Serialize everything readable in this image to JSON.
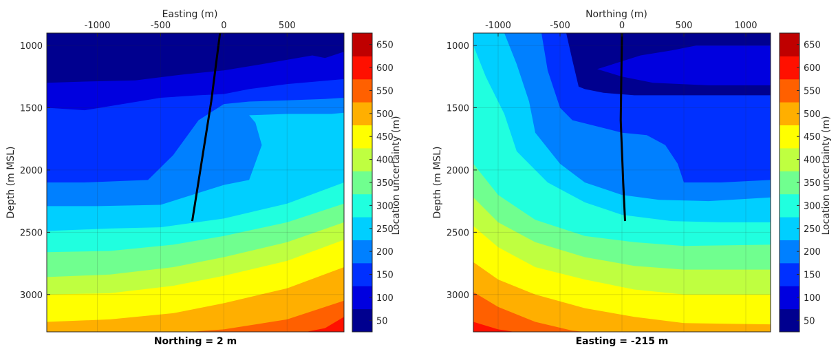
{
  "chart_data": [
    {
      "type": "filled-contour",
      "title": "Northing = 2 m",
      "xlabel": "Easting (m)",
      "ylabel": "Depth (m MSL)",
      "colorbar_label": "Location uncertainty (m)",
      "xlim": [
        -1400,
        950
      ],
      "ylim": [
        900,
        3300
      ],
      "y_reversed": true,
      "x_axis_position": "top",
      "grid": true,
      "xticks": [
        -1000,
        -500,
        0,
        500
      ],
      "xtick_labels": [
        "-1000",
        "-500",
        "0",
        "500"
      ],
      "yticks": [
        1000,
        1500,
        2000,
        2500,
        3000
      ],
      "ytick_labels": [
        "1000",
        "1500",
        "2000",
        "2500",
        "3000"
      ],
      "well_trace": {
        "x": [
          -30,
          -100,
          -250
        ],
        "y": [
          900,
          1450,
          2410
        ]
      },
      "contour_boundaries": [
        {
          "name": "100",
          "x": [
            -1400,
            -1100,
            -700,
            -300,
            0,
            300,
            700,
            800,
            950
          ],
          "y": [
            1300,
            1290,
            1280,
            1230,
            1200,
            1150,
            1080,
            1100,
            1050
          ]
        },
        {
          "name": "150",
          "x": [
            -1400,
            -1100,
            -800,
            -500,
            -200,
            0,
            200,
            500,
            950
          ],
          "y": [
            1500,
            1520,
            1470,
            1420,
            1400,
            1390,
            1350,
            1310,
            1270
          ]
        },
        {
          "name": "200",
          "x": [
            -1400,
            -1100,
            -600,
            -400,
            -200,
            0,
            200,
            500,
            800,
            950
          ],
          "y": [
            2100,
            2100,
            2080,
            1880,
            1600,
            1470,
            1450,
            1440,
            1430,
            1420
          ]
        },
        {
          "name": "250",
          "x": [
            -1400,
            -1000,
            -500,
            0,
            200,
            300,
            250,
            200,
            500,
            850,
            950
          ],
          "y": [
            2290,
            2290,
            2280,
            2120,
            2080,
            1800,
            1620,
            1560,
            1550,
            1550,
            1540
          ]
        },
        {
          "name": "300",
          "x": [
            -1400,
            -900,
            -500,
            0,
            500,
            950
          ],
          "y": [
            2490,
            2470,
            2460,
            2390,
            2270,
            2100
          ]
        },
        {
          "name": "350",
          "x": [
            -1400,
            -900,
            -400,
            0,
            500,
            950
          ],
          "y": [
            2660,
            2650,
            2600,
            2530,
            2420,
            2270
          ]
        },
        {
          "name": "400",
          "x": [
            -1400,
            -900,
            -400,
            0,
            500,
            950
          ],
          "y": [
            2860,
            2840,
            2780,
            2700,
            2580,
            2420
          ]
        },
        {
          "name": "450",
          "x": [
            -1400,
            -900,
            -400,
            0,
            500,
            950
          ],
          "y": [
            3000,
            2990,
            2930,
            2850,
            2730,
            2560
          ]
        },
        {
          "name": "500",
          "x": [
            -1400,
            -900,
            -400,
            0,
            500,
            950
          ],
          "y": [
            3220,
            3200,
            3150,
            3070,
            2950,
            2780
          ]
        },
        {
          "name": "550",
          "x": [
            -400,
            0,
            500,
            950
          ],
          "y": [
            3310,
            3280,
            3200,
            3050
          ]
        },
        {
          "name": "600",
          "x": [
            600,
            800,
            950
          ],
          "y": [
            3310,
            3270,
            3180
          ]
        }
      ]
    },
    {
      "type": "filled-contour",
      "title": "Easting = -215 m",
      "xlabel": "Northing (m)",
      "ylabel": "Depth (m MSL)",
      "colorbar_label": "Location uncertainty (m)",
      "xlim": [
        -1200,
        1200
      ],
      "ylim": [
        900,
        3300
      ],
      "y_reversed": true,
      "x_axis_position": "top",
      "grid": true,
      "xticks": [
        -1000,
        -500,
        0,
        500,
        1000
      ],
      "xtick_labels": [
        "-1000",
        "-500",
        "0",
        "500",
        "1000"
      ],
      "yticks": [
        1000,
        1500,
        2000,
        2500,
        3000
      ],
      "ytick_labels": [
        "1000",
        "1500",
        "2000",
        "2500",
        "3000"
      ],
      "well_trace": {
        "x": [
          0,
          -10,
          10,
          25
        ],
        "y": [
          900,
          1600,
          2100,
          2410
        ]
      },
      "contour_boundaries": [
        {
          "name": "100",
          "x": [
            1200,
            600,
            400,
            150,
            -200,
            0,
            250,
            700,
            1200
          ],
          "y": [
            1000,
            1000,
            1040,
            1080,
            1190,
            1250,
            1300,
            1320,
            1320
          ]
        },
        {
          "name": "150",
          "x": [
            -450,
            -400,
            -350,
            -300,
            -150,
            100,
            1200
          ],
          "y": [
            900,
            1120,
            1330,
            1350,
            1380,
            1400,
            1400
          ]
        },
        {
          "name": "200",
          "x": [
            -650,
            -600,
            -500,
            -400,
            -200,
            0,
            200,
            350,
            450,
            500,
            800,
            1200
          ],
          "y": [
            900,
            1200,
            1500,
            1600,
            1650,
            1700,
            1720,
            1800,
            1950,
            2100,
            2100,
            2080
          ]
        },
        {
          "name": "250",
          "x": [
            -950,
            -850,
            -750,
            -700,
            -500,
            -300,
            0,
            300,
            700,
            1200
          ],
          "y": [
            900,
            1150,
            1450,
            1700,
            1950,
            2100,
            2200,
            2240,
            2250,
            2220
          ]
        },
        {
          "name": "300",
          "x": [
            -1200,
            -1100,
            -950,
            -850,
            -600,
            -300,
            0,
            400,
            800,
            1200
          ],
          "y": [
            1000,
            1250,
            1550,
            1850,
            2100,
            2260,
            2360,
            2410,
            2420,
            2420
          ]
        },
        {
          "name": "350",
          "x": [
            -1200,
            -1000,
            -700,
            -300,
            100,
            500,
            1200
          ],
          "y": [
            1950,
            2200,
            2400,
            2530,
            2580,
            2610,
            2600
          ]
        },
        {
          "name": "400",
          "x": [
            -1200,
            -1000,
            -700,
            -300,
            100,
            500,
            1200
          ],
          "y": [
            2220,
            2420,
            2580,
            2700,
            2770,
            2800,
            2800
          ]
        },
        {
          "name": "450",
          "x": [
            -1200,
            -1000,
            -700,
            -300,
            100,
            500,
            1200
          ],
          "y": [
            2450,
            2620,
            2780,
            2880,
            2960,
            3000,
            3000
          ]
        },
        {
          "name": "500",
          "x": [
            -1200,
            -1000,
            -700,
            -300,
            100,
            500,
            1200
          ],
          "y": [
            2740,
            2880,
            3000,
            3110,
            3180,
            3230,
            3240
          ]
        },
        {
          "name": "550",
          "x": [
            -1200,
            -1000,
            -700,
            -400,
            -200
          ],
          "y": [
            2980,
            3100,
            3220,
            3290,
            3310
          ]
        },
        {
          "name": "600",
          "x": [
            -1200,
            -1000,
            -800
          ],
          "y": [
            3220,
            3280,
            3310
          ]
        }
      ]
    }
  ],
  "colorbar": {
    "label": "Location uncertainty (m)",
    "levels": [
      50,
      100,
      150,
      200,
      250,
      300,
      350,
      400,
      450,
      500,
      550,
      600,
      650
    ],
    "tick_labels": [
      "50",
      "100",
      "150",
      "200",
      "250",
      "300",
      "350",
      "400",
      "450",
      "500",
      "550",
      "600",
      "650"
    ],
    "colors": [
      "#00008f",
      "#0000df",
      "#0030ff",
      "#0080ff",
      "#00cfff",
      "#20ffdf",
      "#70ff8f",
      "#bfff40",
      "#ffff00",
      "#ffaf00",
      "#ff6000",
      "#ff1000",
      "#bf0000"
    ]
  }
}
